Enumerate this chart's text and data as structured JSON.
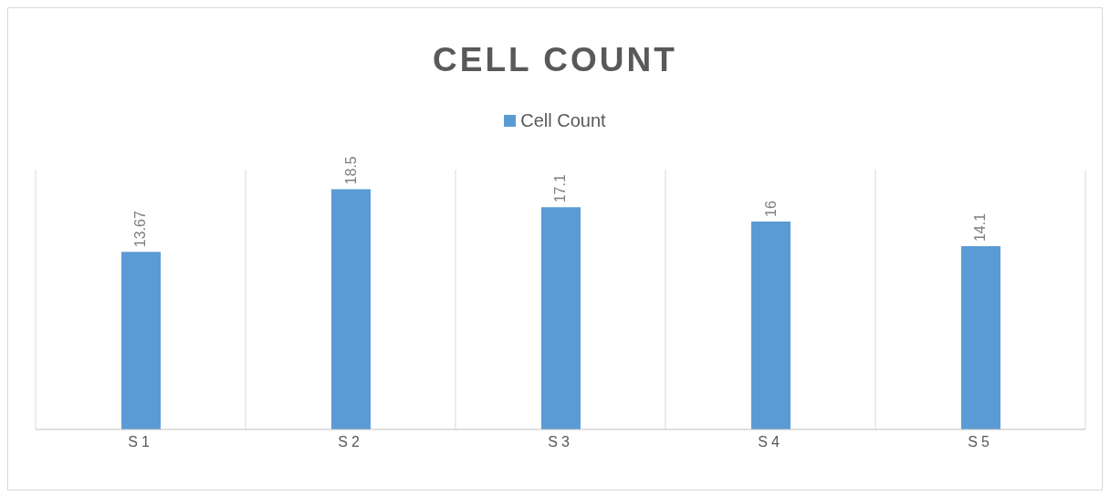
{
  "chart_data": {
    "type": "bar",
    "title": "CELL COUNT",
    "categories": [
      "S1",
      "S2",
      "S3",
      "S4",
      "S5"
    ],
    "series": [
      {
        "name": "Cell Count",
        "color": "#5b9bd5",
        "values": [
          13.67,
          18.5,
          17.1,
          16,
          14.1
        ]
      }
    ],
    "data_labels": true,
    "grid": "x",
    "legend": "top"
  }
}
